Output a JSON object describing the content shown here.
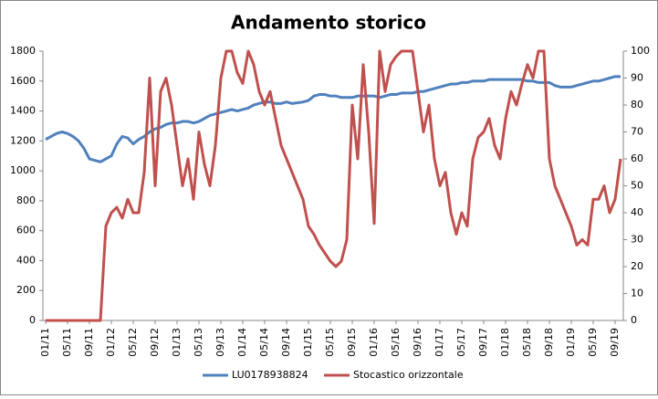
{
  "chart_data": {
    "type": "line",
    "title": "Andamento storico",
    "categories": [
      "01/11",
      null,
      null,
      null,
      "05/11",
      null,
      null,
      null,
      "09/11",
      null,
      null,
      null,
      "01/12",
      null,
      null,
      null,
      "05/12",
      null,
      null,
      null,
      "09/12",
      null,
      null,
      null,
      "01/13",
      null,
      null,
      null,
      "05/13",
      null,
      null,
      null,
      "09/13",
      null,
      null,
      null,
      "01/14",
      null,
      null,
      null,
      "05/14",
      null,
      null,
      null,
      "09/14",
      null,
      null,
      null,
      "01/15",
      null,
      null,
      null,
      "05/15",
      null,
      null,
      null,
      "09/15",
      null,
      null,
      null,
      "01/16",
      null,
      null,
      null,
      "05/16",
      null,
      null,
      null,
      "09/16",
      null,
      null,
      null,
      "01/17",
      null,
      null,
      null,
      "05/17",
      null,
      null,
      null,
      "09/17",
      null,
      null,
      null,
      "01/18",
      null,
      null,
      null,
      "05/18",
      null,
      null,
      null,
      "09/18",
      null,
      null,
      null,
      "01/19",
      null,
      null,
      null,
      "05/19",
      null,
      null,
      null,
      "09/19",
      null
    ],
    "series": [
      {
        "name": "LU0178938824",
        "color": "#4f81bd",
        "axis": "y",
        "values": [
          1210,
          1230,
          1250,
          1260,
          1250,
          1230,
          1200,
          1150,
          1080,
          1070,
          1060,
          1080,
          1100,
          1180,
          1230,
          1220,
          1180,
          1210,
          1230,
          1260,
          1280,
          1290,
          1310,
          1320,
          1320,
          1330,
          1330,
          1320,
          1330,
          1350,
          1370,
          1380,
          1390,
          1400,
          1410,
          1400,
          1410,
          1420,
          1440,
          1450,
          1460,
          1460,
          1450,
          1450,
          1460,
          1450,
          1455,
          1460,
          1470,
          1500,
          1510,
          1510,
          1500,
          1500,
          1490,
          1490,
          1490,
          1500,
          1500,
          1500,
          1500,
          1490,
          1500,
          1510,
          1510,
          1520,
          1520,
          1520,
          1530,
          1530,
          1540,
          1550,
          1560,
          1570,
          1580,
          1580,
          1590,
          1590,
          1600,
          1600,
          1600,
          1610,
          1610,
          1610,
          1610,
          1610,
          1610,
          1610,
          1600,
          1600,
          1590,
          1590,
          1590,
          1570,
          1560,
          1560,
          1560,
          1570,
          1580,
          1590,
          1600,
          1600,
          1610,
          1620,
          1630,
          1630
        ]
      },
      {
        "name": "Stocastico orizzontale",
        "color": "#c0504d",
        "axis": "y2",
        "values": [
          0,
          0,
          0,
          0,
          0,
          0,
          0,
          0,
          0,
          0,
          0,
          35,
          40,
          42,
          38,
          45,
          40,
          40,
          55,
          90,
          50,
          85,
          90,
          80,
          65,
          50,
          60,
          45,
          70,
          58,
          50,
          65,
          90,
          100,
          100,
          92,
          88,
          100,
          95,
          85,
          80,
          85,
          75,
          65,
          60,
          55,
          50,
          45,
          35,
          32,
          28,
          25,
          22,
          20,
          22,
          30,
          80,
          60,
          95,
          70,
          36,
          100,
          85,
          95,
          98,
          100,
          100,
          100,
          85,
          70,
          80,
          60,
          50,
          55,
          40,
          32,
          40,
          35,
          60,
          68,
          70,
          75,
          65,
          60,
          75,
          85,
          80,
          88,
          95,
          90,
          100,
          100,
          60,
          50,
          45,
          40,
          35,
          28,
          30,
          28,
          45,
          45,
          50,
          40,
          45,
          60
        ]
      }
    ],
    "ylim": [
      0,
      1800
    ],
    "yticks": [
      0,
      200,
      400,
      600,
      800,
      1000,
      1200,
      1400,
      1600,
      1800
    ],
    "y2lim": [
      0,
      100
    ],
    "y2ticks": [
      0,
      10,
      20,
      30,
      40,
      50,
      60,
      70,
      80,
      90,
      100
    ],
    "grid": false,
    "legend": "bottom"
  }
}
